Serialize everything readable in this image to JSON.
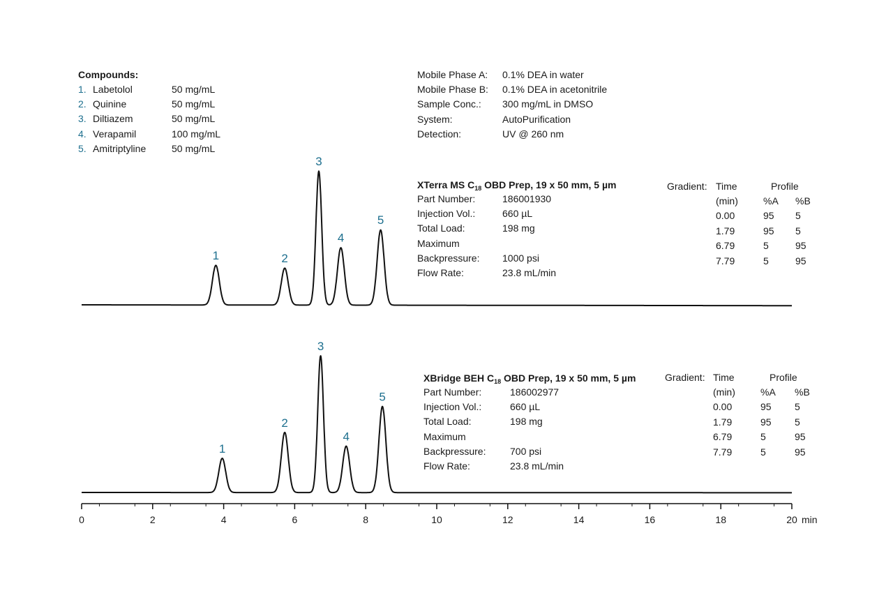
{
  "compounds": {
    "title": "Compounds:",
    "items": [
      {
        "num": "1.",
        "name": "Labetolol",
        "conc": "50 mg/mL"
      },
      {
        "num": "2.",
        "name": "Quinine",
        "conc": "50 mg/mL"
      },
      {
        "num": "3.",
        "name": "Diltiazem",
        "conc": "50 mg/mL"
      },
      {
        "num": "4.",
        "name": "Verapamil",
        "conc": "100 mg/mL"
      },
      {
        "num": "5.",
        "name": "Amitriptyline",
        "conc": "50 mg/mL"
      }
    ]
  },
  "conditions": [
    {
      "label": "Mobile Phase A:",
      "value": "0.1% DEA in water"
    },
    {
      "label": "Mobile Phase B:",
      "value": "0.1% DEA in acetonitrile"
    },
    {
      "label": "Sample Conc.:",
      "value": "300 mg/mL in DMSO"
    },
    {
      "label": "System:",
      "value": "AutoPurification"
    },
    {
      "label": "Detection:",
      "value": "UV @ 260 nm"
    }
  ],
  "panels": [
    {
      "column_pre": "XTerra MS C",
      "column_sub": "18",
      "column_post": " OBD Prep, 19 x 50 mm, 5 µm",
      "details": [
        {
          "label": "Part Number:",
          "value": "186001930"
        },
        {
          "label": "Injection Vol.:",
          "value": "660 µL"
        },
        {
          "label": "Total Load:",
          "value": "198 mg"
        },
        {
          "label": "Maximum",
          "value": ""
        },
        {
          "label": "Backpressure:",
          "value": "1000 psi"
        },
        {
          "label": "Flow Rate:",
          "value": "23.8 mL/min"
        }
      ]
    },
    {
      "column_pre": "XBridge BEH C",
      "column_sub": "18",
      "column_post": " OBD Prep, 19 x 50 mm, 5 µm",
      "details": [
        {
          "label": "Part Number:",
          "value": "186002977"
        },
        {
          "label": "Injection Vol.:",
          "value": "660 µL"
        },
        {
          "label": "Total Load:",
          "value": "198 mg"
        },
        {
          "label": "Maximum",
          "value": ""
        },
        {
          "label": "Backpressure:",
          "value": "700 psi"
        },
        {
          "label": "Flow Rate:",
          "value": "23.8 mL/min"
        }
      ]
    }
  ],
  "gradient": {
    "label": "Gradient:",
    "time_header": "Time",
    "time_unit": "(min)",
    "profile_header": "Profile",
    "a_header": "%A",
    "b_header": "%B",
    "rows": [
      {
        "time": "0.00",
        "a": "95",
        "b": "5"
      },
      {
        "time": "1.79",
        "a": "95",
        "b": "5"
      },
      {
        "time": "6.79",
        "a": "5",
        "b": "95"
      },
      {
        "time": "7.79",
        "a": "5",
        "b": "95"
      }
    ]
  },
  "chart_data": {
    "type": "line",
    "x_unit": "min",
    "xlim": [
      0,
      20
    ],
    "x_ticks": [
      "0",
      "2",
      "4",
      "6",
      "8",
      "10",
      "12",
      "14",
      "16",
      "18",
      "20"
    ],
    "colors": {
      "trace": "#111111",
      "labels": "#1d6f8e"
    },
    "series": [
      {
        "peaks": [
          {
            "label": "1",
            "rt": 3.78,
            "height": 0.29
          },
          {
            "label": "2",
            "rt": 5.72,
            "height": 0.27
          },
          {
            "label": "3",
            "rt": 6.68,
            "height": 0.98
          },
          {
            "label": "4",
            "rt": 7.3,
            "height": 0.42
          },
          {
            "label": "5",
            "rt": 8.42,
            "height": 0.55
          }
        ]
      },
      {
        "peaks": [
          {
            "label": "1",
            "rt": 3.96,
            "height": 0.25
          },
          {
            "label": "2",
            "rt": 5.72,
            "height": 0.44
          },
          {
            "label": "3",
            "rt": 6.73,
            "height": 1.0
          },
          {
            "label": "4",
            "rt": 7.45,
            "height": 0.34
          },
          {
            "label": "5",
            "rt": 8.47,
            "height": 0.63
          }
        ]
      }
    ]
  }
}
